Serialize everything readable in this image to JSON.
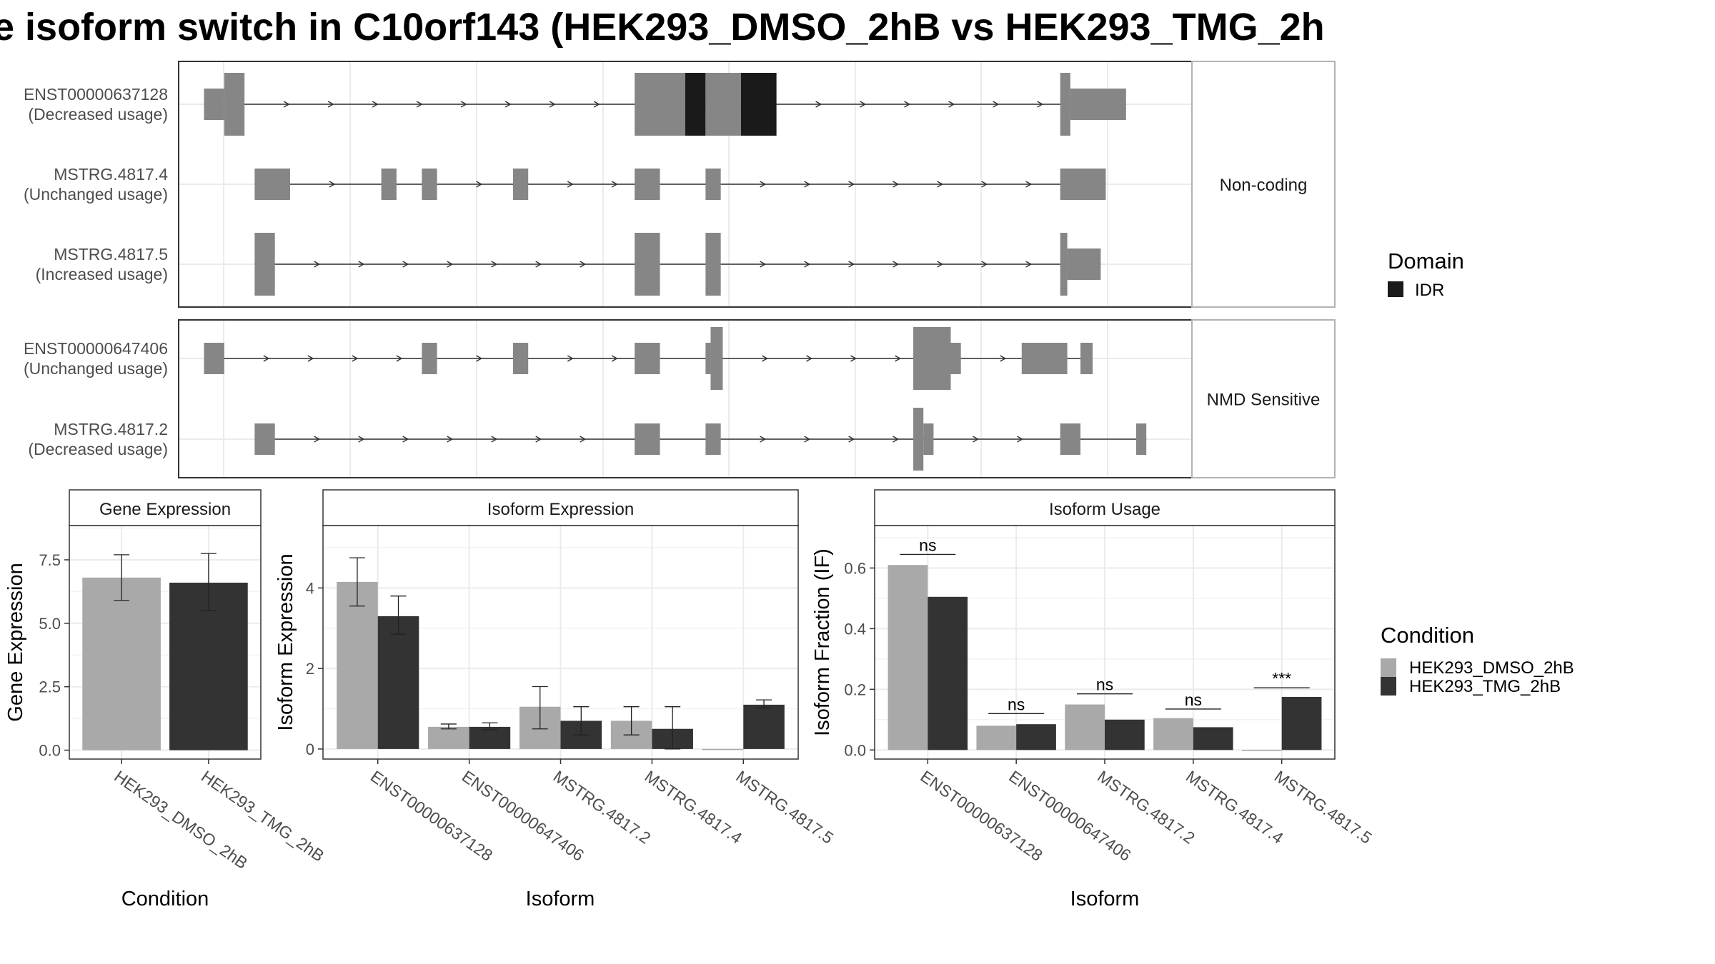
{
  "figure": {
    "title": "e isoform switch in C10orf143 (HEK293_DMSO_2hB vs HEK293_TMG_2h"
  },
  "colors": {
    "exon": "#868686",
    "domain_idr": "#1a1a1a",
    "dmso": "#a9a9a9",
    "tmg": "#333333",
    "grid": "#ebebeb",
    "panel_border": "#4d4d4d"
  },
  "structure": {
    "groups": [
      {
        "label": "Non-coding",
        "isoforms": [
          {
            "name": "ENST00000637128",
            "usage": "(Decreased usage)",
            "blocks": [
              [
                0.025,
                0.045,
                "n"
              ],
              [
                0.045,
                0.065,
                "c"
              ],
              [
                0.45,
                0.5,
                "c"
              ],
              [
                0.5,
                0.52,
                "d"
              ],
              [
                0.52,
                0.555,
                "c"
              ],
              [
                0.555,
                0.59,
                "d"
              ],
              [
                0.87,
                0.88,
                "c"
              ],
              [
                0.88,
                0.935,
                "n"
              ]
            ]
          },
          {
            "name": "MSTRG.4817.4",
            "usage": "(Unchanged usage)",
            "blocks": [
              [
                0.075,
                0.11,
                "n"
              ],
              [
                0.2,
                0.215,
                "n"
              ],
              [
                0.24,
                0.255,
                "n"
              ],
              [
                0.33,
                0.345,
                "n"
              ],
              [
                0.45,
                0.475,
                "n"
              ],
              [
                0.52,
                0.535,
                "n"
              ],
              [
                0.87,
                0.915,
                "n"
              ]
            ]
          },
          {
            "name": "MSTRG.4817.5",
            "usage": "(Increased usage)",
            "blocks": [
              [
                0.075,
                0.095,
                "c"
              ],
              [
                0.45,
                0.475,
                "c"
              ],
              [
                0.52,
                0.535,
                "c"
              ],
              [
                0.87,
                0.877,
                "c"
              ],
              [
                0.877,
                0.91,
                "n"
              ]
            ]
          }
        ]
      },
      {
        "label": "NMD Sensitive",
        "isoforms": [
          {
            "name": "ENST00000647406",
            "usage": "(Unchanged usage)",
            "blocks": [
              [
                0.025,
                0.045,
                "n"
              ],
              [
                0.24,
                0.255,
                "n"
              ],
              [
                0.33,
                0.345,
                "n"
              ],
              [
                0.45,
                0.475,
                "n"
              ],
              [
                0.52,
                0.525,
                "n"
              ],
              [
                0.525,
                0.537,
                "c"
              ],
              [
                0.725,
                0.762,
                "c"
              ],
              [
                0.762,
                0.772,
                "n"
              ],
              [
                0.832,
                0.877,
                "n"
              ],
              [
                0.89,
                0.902,
                "n"
              ]
            ]
          },
          {
            "name": "MSTRG.4817.2",
            "usage": "(Decreased usage)",
            "blocks": [
              [
                0.075,
                0.095,
                "n"
              ],
              [
                0.45,
                0.475,
                "n"
              ],
              [
                0.52,
                0.535,
                "n"
              ],
              [
                0.725,
                0.735,
                "c"
              ],
              [
                0.735,
                0.745,
                "n"
              ],
              [
                0.87,
                0.89,
                "n"
              ],
              [
                0.945,
                0.955,
                "n"
              ]
            ]
          }
        ]
      }
    ],
    "legend": {
      "title": "Domain",
      "items": [
        {
          "label": "IDR"
        }
      ]
    }
  },
  "chart_data": [
    {
      "type": "bar",
      "title": "Gene Expression",
      "xlabel": "Condition",
      "ylabel": "Gene Expression",
      "categories": [
        "HEK293_DMSO_2hB",
        "HEK293_TMG_2hB"
      ],
      "series": [
        {
          "name": "HEK293_DMSO_2hB",
          "values": [
            6.8,
            null
          ],
          "err_low": [
            5.9,
            null
          ],
          "err_high": [
            7.7,
            null
          ]
        },
        {
          "name": "HEK293_TMG_2hB",
          "values": [
            null,
            6.6
          ],
          "err_low": [
            null,
            5.5
          ],
          "err_high": [
            null,
            7.75
          ]
        }
      ],
      "ylim": [
        -0.35,
        8.85
      ],
      "yticks": [
        0.0,
        2.5,
        5.0,
        7.5
      ],
      "ytick_labels": [
        "0.0",
        "2.5",
        "5.0",
        "7.5"
      ]
    },
    {
      "type": "bar",
      "title": "Isoform Expression",
      "xlabel": "Isoform",
      "ylabel": "Isoform Expression",
      "categories": [
        "ENST00000637128",
        "ENST00000647406",
        "MSTRG.4817.2",
        "MSTRG.4817.4",
        "MSTRG.4817.5"
      ],
      "series": [
        {
          "name": "HEK293_DMSO_2hB",
          "values": [
            4.15,
            0.55,
            1.05,
            0.7,
            0.0
          ],
          "err_low": [
            3.55,
            0.5,
            0.5,
            0.35,
            null
          ],
          "err_high": [
            4.75,
            0.62,
            1.55,
            1.05,
            null
          ]
        },
        {
          "name": "HEK293_TMG_2hB",
          "values": [
            3.3,
            0.55,
            0.7,
            0.5,
            1.1
          ],
          "err_low": [
            2.85,
            0.48,
            0.35,
            0.0,
            1.02
          ],
          "err_high": [
            3.8,
            0.65,
            1.05,
            1.05,
            1.22
          ]
        }
      ],
      "ylim": [
        -0.25,
        5.55
      ],
      "yticks": [
        0,
        2,
        4
      ],
      "ytick_labels": [
        "0",
        "2",
        "4"
      ]
    },
    {
      "type": "bar",
      "title": "Isoform Usage",
      "xlabel": "Isoform",
      "ylabel": "Isoform Fraction (IF)",
      "categories": [
        "ENST00000637128",
        "ENST00000647406",
        "MSTRG.4817.2",
        "MSTRG.4817.4",
        "MSTRG.4817.5"
      ],
      "series": [
        {
          "name": "HEK293_DMSO_2hB",
          "values": [
            0.61,
            0.08,
            0.15,
            0.105,
            0.0
          ]
        },
        {
          "name": "HEK293_TMG_2hB",
          "values": [
            0.505,
            0.085,
            0.1,
            0.075,
            0.175
          ]
        }
      ],
      "significance": [
        "ns",
        "ns",
        "ns",
        "ns",
        "***"
      ],
      "sig_y": [
        0.645,
        0.12,
        0.185,
        0.135,
        0.205
      ],
      "ylim": [
        -0.03,
        0.74
      ],
      "yticks": [
        0.0,
        0.2,
        0.4,
        0.6
      ],
      "ytick_labels": [
        "0.0",
        "0.2",
        "0.4",
        "0.6"
      ]
    }
  ],
  "condition_legend": {
    "title": "Condition",
    "items": [
      {
        "label": "HEK293_DMSO_2hB"
      },
      {
        "label": "HEK293_TMG_2hB"
      }
    ]
  }
}
